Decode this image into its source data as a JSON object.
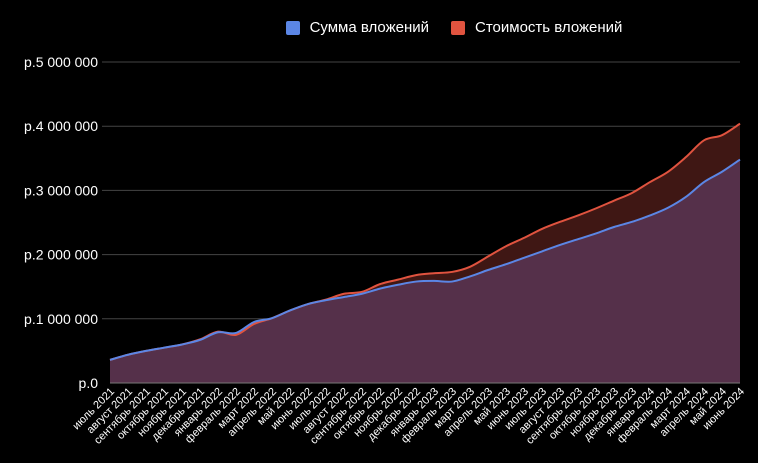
{
  "chart_data": {
    "type": "area",
    "title": "",
    "xlabel": "",
    "ylabel": "",
    "ylim": [
      0,
      5000000
    ],
    "yticks": [
      0,
      1000000,
      2000000,
      3000000,
      4000000,
      5000000
    ],
    "ytick_labels": [
      "р.0",
      "р.1 000 000",
      "р.2 000 000",
      "р.3 000 000",
      "р.4 000 000",
      "р.5 000 000"
    ],
    "grid": true,
    "legend_position": "top",
    "categories": [
      "июль 2021",
      "август 2021",
      "сентябрь 2021",
      "октябрь 2021",
      "ноябрь 2021",
      "декабрь 2021",
      "январь 2022",
      "февраль 2022",
      "март 2022",
      "апрель 2022",
      "май 2022",
      "июнь 2022",
      "июль 2022",
      "август 2022",
      "сентябрь 2022",
      "октябрь 2022",
      "ноябрь 2022",
      "декабрь 2022",
      "январь 2023",
      "февраль 2023",
      "март 2023",
      "апрель 2023",
      "май 2023",
      "июнь 2023",
      "июль 2023",
      "август 2023",
      "сентябрь 2023",
      "октябрь 2023",
      "ноябрь 2023",
      "декабрь 2023",
      "январь 2024",
      "февраль 2024",
      "март 2024",
      "апрель 2024",
      "май 2024",
      "июнь 2024"
    ],
    "series": [
      {
        "name": "Сумма вложений",
        "color": "#5b86e5",
        "fill": "#55304a",
        "values": [
          360000,
          440000,
          500000,
          550000,
          600000,
          670000,
          790000,
          780000,
          950000,
          1010000,
          1130000,
          1230000,
          1290000,
          1340000,
          1390000,
          1470000,
          1530000,
          1580000,
          1590000,
          1580000,
          1660000,
          1760000,
          1850000,
          1950000,
          2050000,
          2150000,
          2240000,
          2330000,
          2430000,
          2510000,
          2610000,
          2730000,
          2900000,
          3130000,
          3290000,
          3480000
        ]
      },
      {
        "name": "Стоимость вложений",
        "color": "#e0533f",
        "fill": "#3f1714",
        "values": [
          360000,
          440000,
          500000,
          550000,
          600000,
          680000,
          800000,
          750000,
          920000,
          1010000,
          1130000,
          1230000,
          1300000,
          1390000,
          1420000,
          1540000,
          1610000,
          1680000,
          1710000,
          1730000,
          1810000,
          1970000,
          2130000,
          2260000,
          2400000,
          2510000,
          2610000,
          2720000,
          2840000,
          2960000,
          3130000,
          3290000,
          3520000,
          3780000,
          3860000,
          4040000
        ]
      }
    ]
  }
}
